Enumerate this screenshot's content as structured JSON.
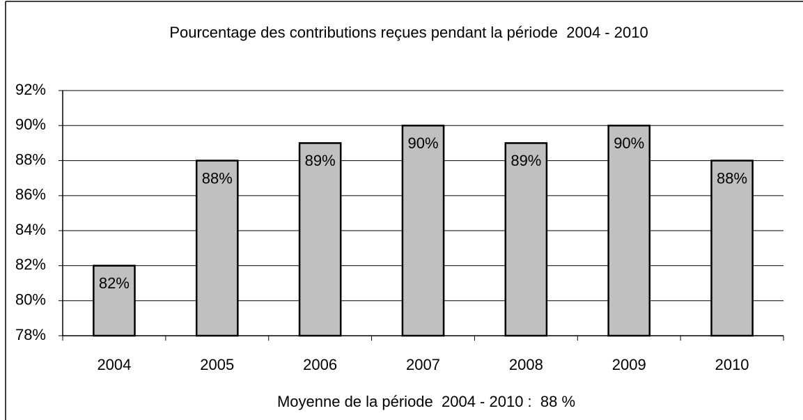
{
  "chart_data": {
    "type": "bar",
    "title": "Pourcentage des contributions reçues pendant la période  2004 - 2010",
    "x_label": "Moyenne de la période  2004 - 2010 :  88 %",
    "categories": [
      "2004",
      "2005",
      "2006",
      "2007",
      "2008",
      "2009",
      "2010"
    ],
    "values": [
      82,
      88,
      89,
      90,
      89,
      90,
      88
    ],
    "value_labels": [
      "82%",
      "88%",
      "89%",
      "90%",
      "89%",
      "90%",
      "88%"
    ],
    "color": "#c0c0c0",
    "ylim": [
      78,
      92
    ],
    "yticks": [
      {
        "value": 78,
        "label": "78%"
      },
      {
        "value": 80,
        "label": "80%"
      },
      {
        "value": 82,
        "label": "82%"
      },
      {
        "value": 84,
        "label": "84%"
      },
      {
        "value": 86,
        "label": "86%"
      },
      {
        "value": 88,
        "label": "88%"
      },
      {
        "value": 90,
        "label": "90%"
      },
      {
        "value": 92,
        "label": "92%"
      }
    ],
    "grid": true
  }
}
